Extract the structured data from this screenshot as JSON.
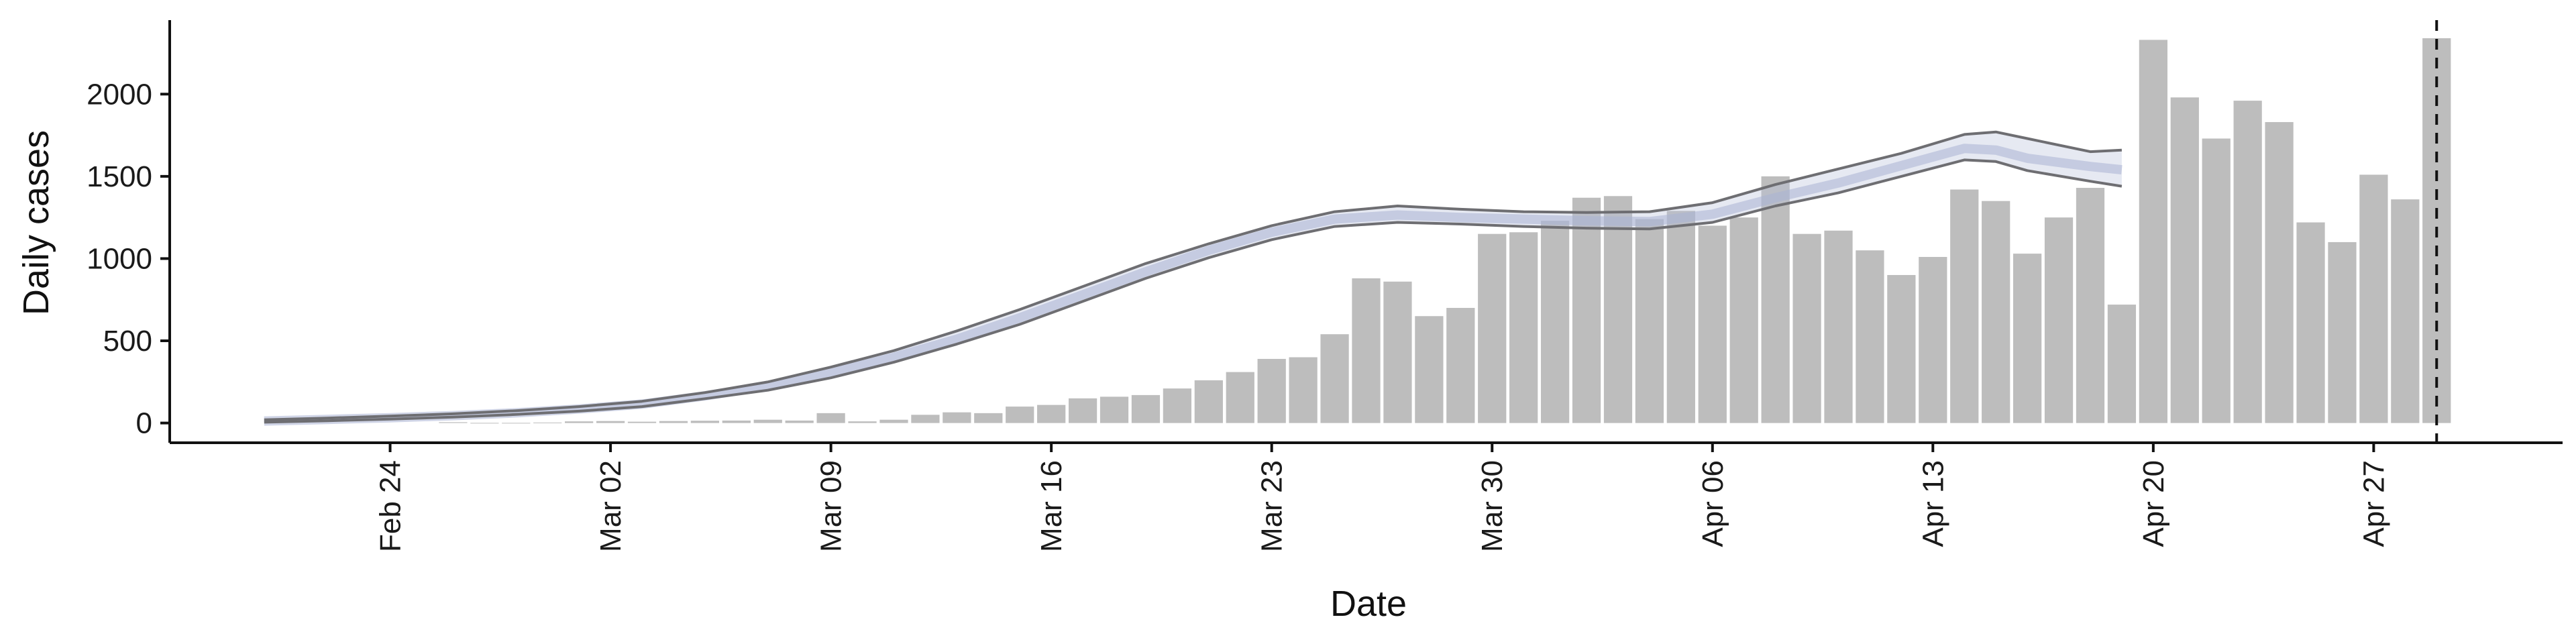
{
  "chart_data": {
    "type": "bar",
    "xlabel": "Date",
    "ylabel": "Daily cases",
    "title": "",
    "grid": false,
    "legend": "none",
    "x_tick_labels": [
      "Feb 24",
      "Mar 02",
      "Mar 09",
      "Mar 16",
      "Mar 23",
      "Mar 30",
      "Apr 06",
      "Apr 13",
      "Apr 20",
      "Apr 27"
    ],
    "y_tick_labels": [
      "0",
      "500",
      "1000",
      "1500",
      "2000"
    ],
    "ylim": [
      -120,
      2450
    ],
    "xlim": [
      "2020-02-17",
      "2020-05-03"
    ],
    "x_tick_dates": [
      "2020-02-24",
      "2020-03-02",
      "2020-03-09",
      "2020-03-16",
      "2020-03-23",
      "2020-03-30",
      "2020-04-06",
      "2020-04-13",
      "2020-04-20",
      "2020-04-27"
    ],
    "bars": {
      "name": "Daily cases",
      "color": "#bdbdbd",
      "dates": [
        "2020-02-26",
        "2020-02-27",
        "2020-02-28",
        "2020-02-29",
        "2020-03-01",
        "2020-03-02",
        "2020-03-03",
        "2020-03-04",
        "2020-03-05",
        "2020-03-06",
        "2020-03-07",
        "2020-03-08",
        "2020-03-09",
        "2020-03-10",
        "2020-03-11",
        "2020-03-12",
        "2020-03-13",
        "2020-03-14",
        "2020-03-15",
        "2020-03-16",
        "2020-03-17",
        "2020-03-18",
        "2020-03-19",
        "2020-03-20",
        "2020-03-21",
        "2020-03-22",
        "2020-03-23",
        "2020-03-24",
        "2020-03-25",
        "2020-03-26",
        "2020-03-27",
        "2020-03-28",
        "2020-03-29",
        "2020-03-30",
        "2020-03-31",
        "2020-04-01",
        "2020-04-02",
        "2020-04-03",
        "2020-04-04",
        "2020-04-05",
        "2020-04-06",
        "2020-04-07",
        "2020-04-08",
        "2020-04-09",
        "2020-04-10",
        "2020-04-11",
        "2020-04-12",
        "2020-04-13",
        "2020-04-14",
        "2020-04-15",
        "2020-04-16",
        "2020-04-17",
        "2020-04-18",
        "2020-04-19",
        "2020-04-20",
        "2020-04-21",
        "2020-04-22",
        "2020-04-23",
        "2020-04-24",
        "2020-04-25",
        "2020-04-26",
        "2020-04-27",
        "2020-04-28",
        "2020-04-29"
      ],
      "values": [
        5,
        1,
        1,
        3,
        10,
        12,
        8,
        12,
        14,
        15,
        20,
        15,
        60,
        10,
        20,
        50,
        65,
        60,
        100,
        110,
        150,
        160,
        170,
        210,
        260,
        310,
        390,
        400,
        540,
        880,
        860,
        650,
        700,
        1150,
        1160,
        1230,
        1370,
        1380,
        1240,
        1290,
        1200,
        1250,
        1500,
        1150,
        1170,
        1050,
        900,
        1010,
        1420,
        1350,
        1030,
        1250,
        1430,
        720,
        2330,
        1980,
        1730,
        1960,
        1830,
        1220,
        1100,
        1510,
        1360,
        2340
      ]
    },
    "estimate": {
      "name": "Estimate",
      "line_color": "#6e6e72",
      "band_color": "#b8c0da",
      "dates": [
        "2020-02-20",
        "2020-02-22",
        "2020-02-24",
        "2020-02-26",
        "2020-02-28",
        "2020-03-01",
        "2020-03-03",
        "2020-03-05",
        "2020-03-07",
        "2020-03-09",
        "2020-03-11",
        "2020-03-13",
        "2020-03-15",
        "2020-03-17",
        "2020-03-19",
        "2020-03-21",
        "2020-03-23",
        "2020-03-25",
        "2020-03-27",
        "2020-03-29",
        "2020-03-31",
        "2020-04-02",
        "2020-04-04",
        "2020-04-06",
        "2020-04-08",
        "2020-04-10",
        "2020-04-12",
        "2020-04-14",
        "2020-04-15",
        "2020-04-16",
        "2020-04-18",
        "2020-04-19"
      ],
      "median": [
        12,
        22,
        32,
        45,
        62,
        85,
        115,
        165,
        225,
        305,
        400,
        510,
        640,
        780,
        920,
        1050,
        1160,
        1240,
        1265,
        1250,
        1240,
        1230,
        1225,
        1270,
        1370,
        1460,
        1565,
        1670,
        1660,
        1610,
        1560,
        1540
      ],
      "lower": [
        5,
        14,
        24,
        36,
        52,
        72,
        100,
        148,
        200,
        275,
        370,
        480,
        600,
        740,
        880,
        1005,
        1115,
        1195,
        1220,
        1210,
        1195,
        1185,
        1180,
        1220,
        1320,
        1400,
        1500,
        1600,
        1590,
        1535,
        1470,
        1440
      ],
      "upper": [
        20,
        30,
        42,
        56,
        75,
        100,
        132,
        185,
        250,
        340,
        440,
        560,
        690,
        830,
        970,
        1090,
        1200,
        1285,
        1320,
        1300,
        1285,
        1280,
        1285,
        1340,
        1450,
        1545,
        1640,
        1755,
        1770,
        1730,
        1650,
        1660
      ]
    },
    "reference_line_date": "2020-04-29"
  }
}
